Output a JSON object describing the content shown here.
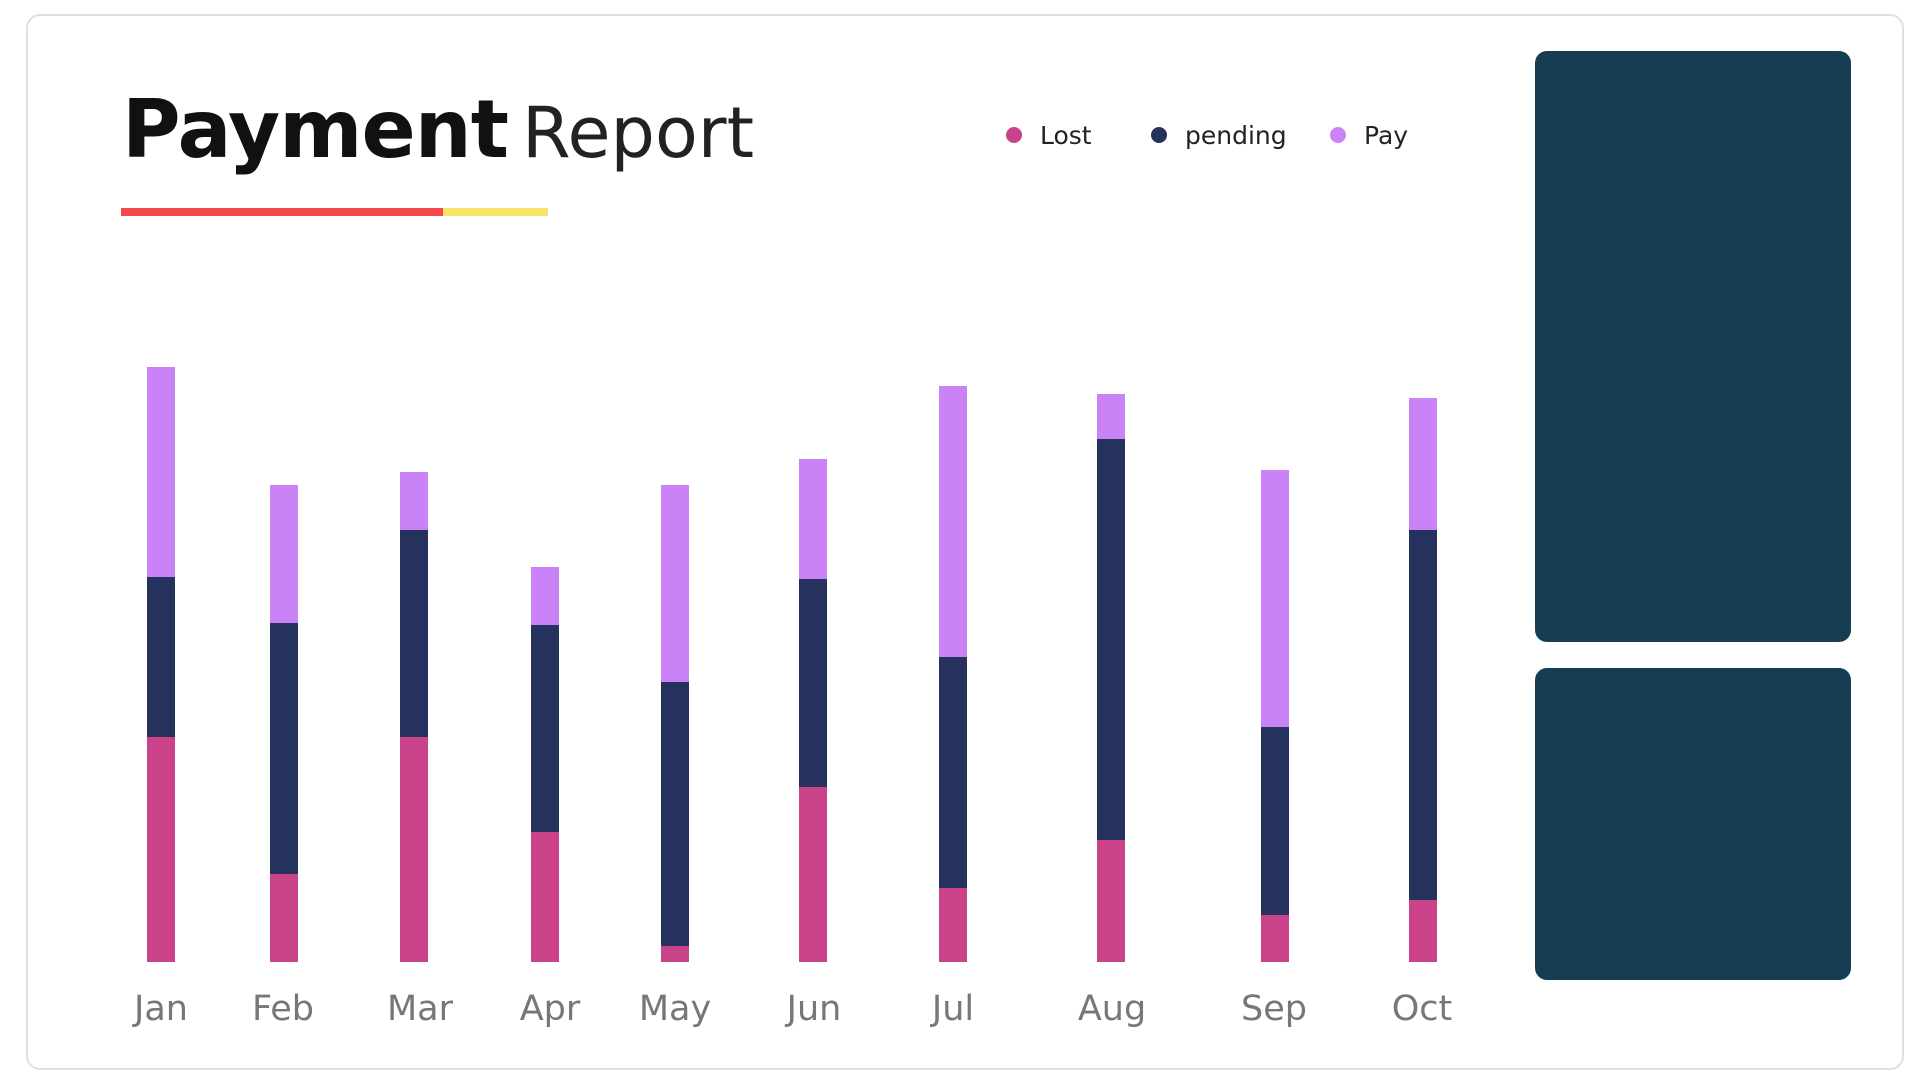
{
  "title": {
    "bold": "Payment",
    "light": "Report"
  },
  "colors": {
    "lost": "#c9428a",
    "pending": "#26325e",
    "pay": "#c983f7",
    "underline_primary": "#f24a4a",
    "underline_secondary": "#f7e36a",
    "panel": "#173d52"
  },
  "legend": [
    {
      "label": "Lost",
      "color": "#c9428a"
    },
    {
      "label": "pending",
      "color": "#26325e"
    },
    {
      "label": "Pay",
      "color": "#c983f7"
    }
  ],
  "chart_data": {
    "type": "bar",
    "stacked": true,
    "categories": [
      "Jan",
      "Feb",
      "Mar",
      "Apr",
      "May",
      "Jun",
      "Jul",
      "Aug",
      "Sep",
      "Oct"
    ],
    "series": [
      {
        "name": "Lost",
        "color": "#c9428a",
        "values": [
          225,
          88,
          225,
          130,
          16,
          175,
          74,
          122,
          47,
          62
        ]
      },
      {
        "name": "pending",
        "color": "#26325e",
        "values": [
          160,
          251,
          207,
          207,
          264,
          208,
          231,
          401,
          188,
          370
        ]
      },
      {
        "name": "Pay",
        "color": "#c983f7",
        "values": [
          210,
          138,
          58,
          58,
          197,
          120,
          271,
          45,
          257,
          132
        ]
      }
    ],
    "ylim": [
      0,
      600
    ],
    "grid": false,
    "legend_position": "top-right"
  }
}
